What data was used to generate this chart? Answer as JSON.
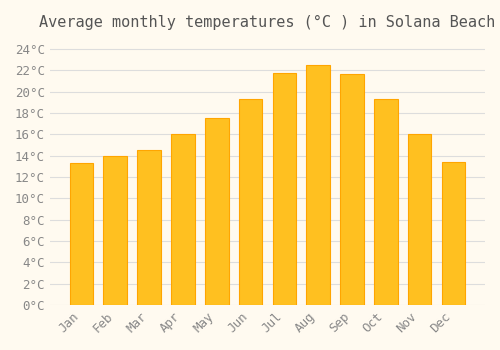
{
  "title": "Average monthly temperatures (°C ) in Solana Beach",
  "months": [
    "Jan",
    "Feb",
    "Mar",
    "Apr",
    "May",
    "Jun",
    "Jul",
    "Aug",
    "Sep",
    "Oct",
    "Nov",
    "Dec"
  ],
  "values": [
    13.3,
    14.0,
    14.5,
    16.0,
    17.5,
    19.3,
    21.7,
    22.5,
    21.6,
    19.3,
    16.0,
    13.4
  ],
  "bar_color_main": "#FFC020",
  "bar_color_edge": "#FFA500",
  "background_color": "#FFFAF0",
  "grid_color": "#DDDDDD",
  "yticks": [
    0,
    2,
    4,
    6,
    8,
    10,
    12,
    14,
    16,
    18,
    20,
    22,
    24
  ],
  "ylim": [
    0,
    25
  ],
  "title_fontsize": 11,
  "tick_fontsize": 9,
  "title_color": "#555555",
  "tick_color": "#888888"
}
